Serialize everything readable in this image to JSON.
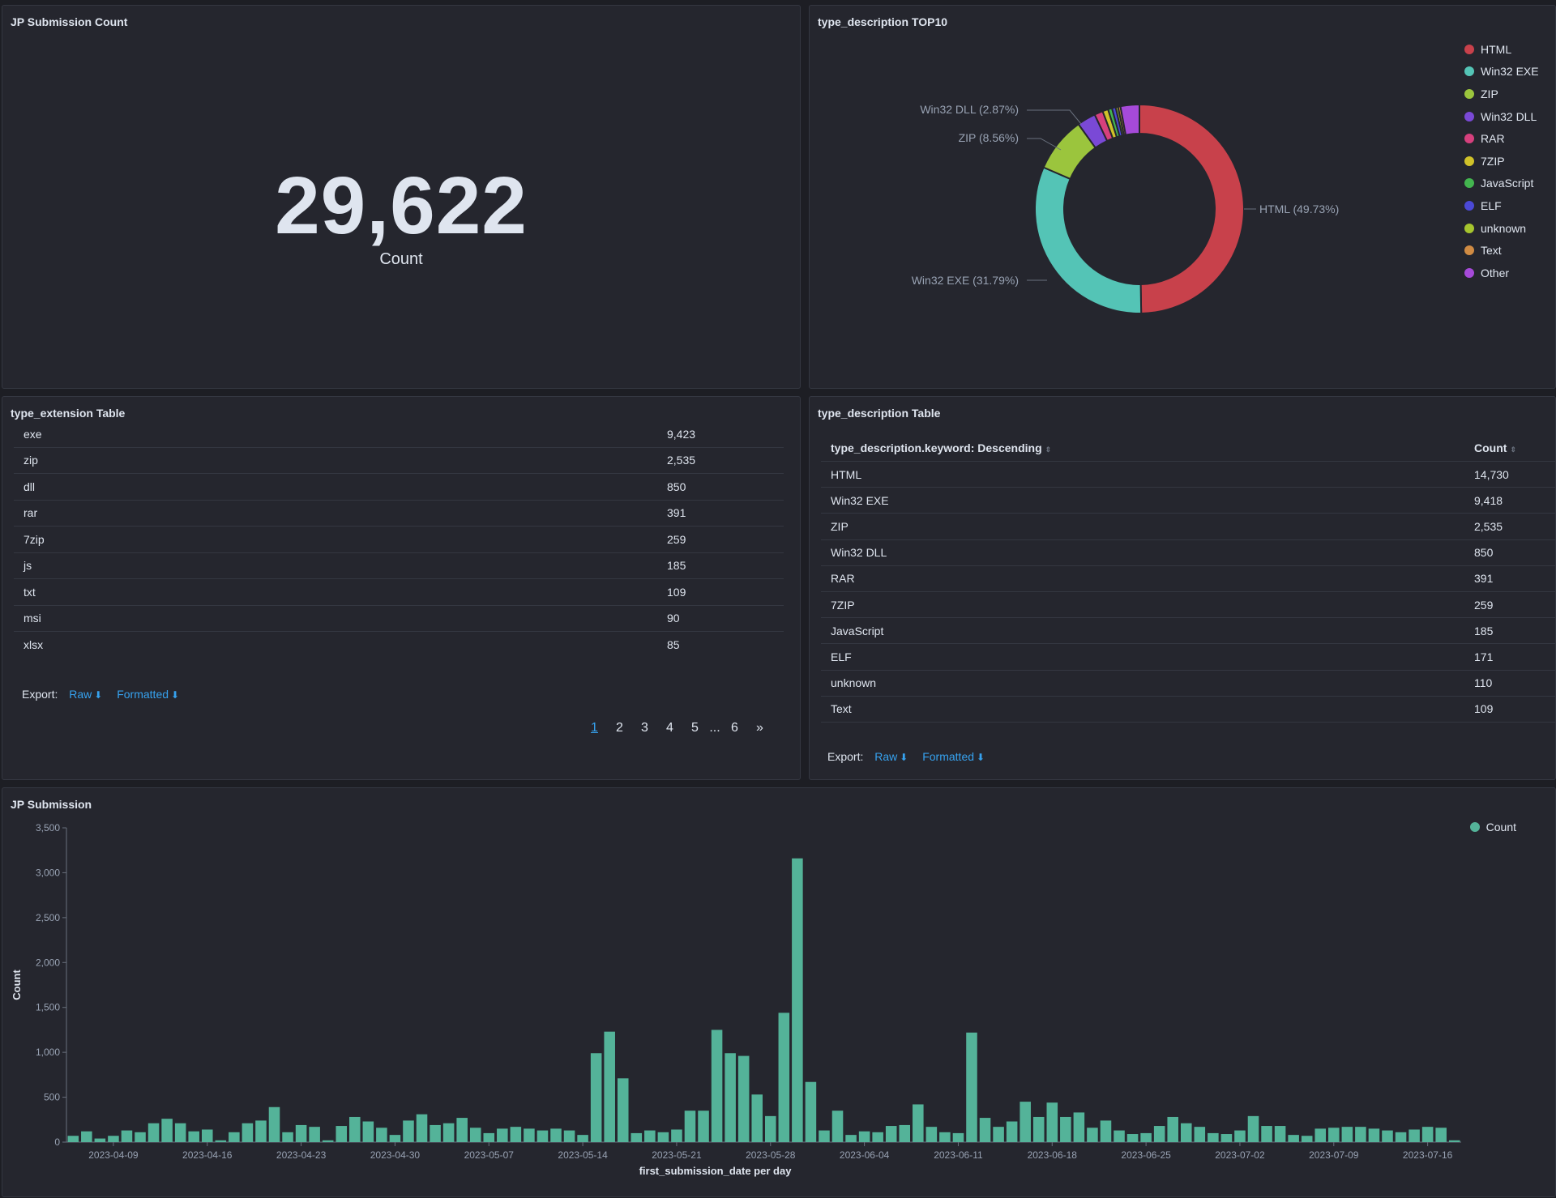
{
  "metric_panel": {
    "title": "JP Submission Count",
    "value": "29,622",
    "label": "Count"
  },
  "pie_panel": {
    "title": "type_description TOP10",
    "legend": [
      {
        "label": "HTML",
        "color": "#c8414b"
      },
      {
        "label": "Win32 EXE",
        "color": "#54c4b6"
      },
      {
        "label": "ZIP",
        "color": "#9bc53d"
      },
      {
        "label": "Win32 DLL",
        "color": "#7a49d6"
      },
      {
        "label": "RAR",
        "color": "#d6407d"
      },
      {
        "label": "7ZIP",
        "color": "#d0c229"
      },
      {
        "label": "JavaScript",
        "color": "#43b54f"
      },
      {
        "label": "ELF",
        "color": "#4b49d6"
      },
      {
        "label": "unknown",
        "color": "#a6c52e"
      },
      {
        "label": "Text",
        "color": "#d08b43"
      },
      {
        "label": "Other",
        "color": "#a64ad9"
      }
    ],
    "labels": {
      "html": "HTML (49.73%)",
      "win32exe": "Win32 EXE (31.79%)",
      "zip": "ZIP (8.56%)",
      "win32dll": "Win32 DLL (2.87%)"
    }
  },
  "chart_data": [
    {
      "type": "pie",
      "title": "type_description TOP10",
      "donut": true,
      "labels": [
        "HTML",
        "Win32 EXE",
        "ZIP",
        "Win32 DLL",
        "RAR",
        "7ZIP",
        "JavaScript",
        "ELF",
        "unknown",
        "Text",
        "Other"
      ],
      "values": [
        49.73,
        31.79,
        8.56,
        2.87,
        1.32,
        0.87,
        0.62,
        0.58,
        0.37,
        0.37,
        2.92
      ],
      "colors": [
        "#c8414b",
        "#54c4b6",
        "#9bc53d",
        "#7a49d6",
        "#d6407d",
        "#d0c229",
        "#43b54f",
        "#4b49d6",
        "#a6c52e",
        "#d08b43",
        "#a64ad9"
      ],
      "legend": "right"
    },
    {
      "type": "bar",
      "title": "JP Submission",
      "xlabel": "first_submission_date per day",
      "ylabel": "Count",
      "ylim": [
        0,
        3500
      ],
      "yticks": [
        "0",
        "500",
        "1,000",
        "1,500",
        "2,000",
        "2,500",
        "3,000",
        "3,500"
      ],
      "xticks": [
        "2023-04-09",
        "2023-04-16",
        "2023-04-23",
        "2023-04-30",
        "2023-05-07",
        "2023-05-14",
        "2023-05-21",
        "2023-05-28",
        "2023-06-04",
        "2023-06-11",
        "2023-06-18",
        "2023-06-25",
        "2023-07-02",
        "2023-07-09",
        "2023-07-16"
      ],
      "series": [
        {
          "name": "Count",
          "color": "#54b399"
        }
      ],
      "values": [
        70,
        120,
        40,
        70,
        130,
        110,
        210,
        260,
        210,
        120,
        140,
        20,
        110,
        210,
        240,
        390,
        110,
        190,
        170,
        20,
        180,
        280,
        230,
        160,
        80,
        240,
        310,
        190,
        210,
        270,
        160,
        100,
        150,
        170,
        150,
        130,
        150,
        130,
        80,
        990,
        1230,
        710,
        100,
        130,
        110,
        140,
        350,
        350,
        1250,
        990,
        960,
        530,
        290,
        1440,
        3160,
        670,
        130,
        350,
        80,
        120,
        110,
        180,
        190,
        420,
        170,
        110,
        100,
        1220,
        270,
        170,
        230,
        450,
        280,
        440,
        280,
        330,
        160,
        240,
        130,
        90,
        100,
        180,
        280,
        210,
        170,
        100,
        90,
        130,
        290,
        180,
        180,
        80,
        70,
        150,
        160,
        170,
        170,
        150,
        130,
        110,
        140,
        170,
        160,
        20
      ]
    }
  ],
  "ext_panel": {
    "title": "type_extension Table",
    "rows": [
      {
        "name": "exe",
        "count": "9,423"
      },
      {
        "name": "zip",
        "count": "2,535"
      },
      {
        "name": "dll",
        "count": "850"
      },
      {
        "name": "rar",
        "count": "391"
      },
      {
        "name": "7zip",
        "count": "259"
      },
      {
        "name": "js",
        "count": "185"
      },
      {
        "name": "txt",
        "count": "109"
      },
      {
        "name": "msi",
        "count": "90"
      },
      {
        "name": "xlsx",
        "count": "85"
      }
    ],
    "export_label": "Export:",
    "raw_label": "Raw",
    "formatted_label": "Formatted",
    "pages": [
      "1",
      "2",
      "3",
      "4",
      "5",
      "6"
    ],
    "ellipsis": "...",
    "next": "»"
  },
  "desc_panel": {
    "title": "type_description Table",
    "col1": "type_description.keyword: Descending",
    "col2": "Count",
    "rows": [
      {
        "name": "HTML",
        "count": "14,730"
      },
      {
        "name": "Win32 EXE",
        "count": "9,418"
      },
      {
        "name": "ZIP",
        "count": "2,535"
      },
      {
        "name": "Win32 DLL",
        "count": "850"
      },
      {
        "name": "RAR",
        "count": "391"
      },
      {
        "name": "7ZIP",
        "count": "259"
      },
      {
        "name": "JavaScript",
        "count": "185"
      },
      {
        "name": "ELF",
        "count": "171"
      },
      {
        "name": "unknown",
        "count": "110"
      },
      {
        "name": "Text",
        "count": "109"
      }
    ],
    "export_label": "Export:",
    "raw_label": "Raw",
    "formatted_label": "Formatted"
  },
  "bar_panel": {
    "title": "JP Submission",
    "legend_label": "Count",
    "legend_color": "#54b399"
  }
}
